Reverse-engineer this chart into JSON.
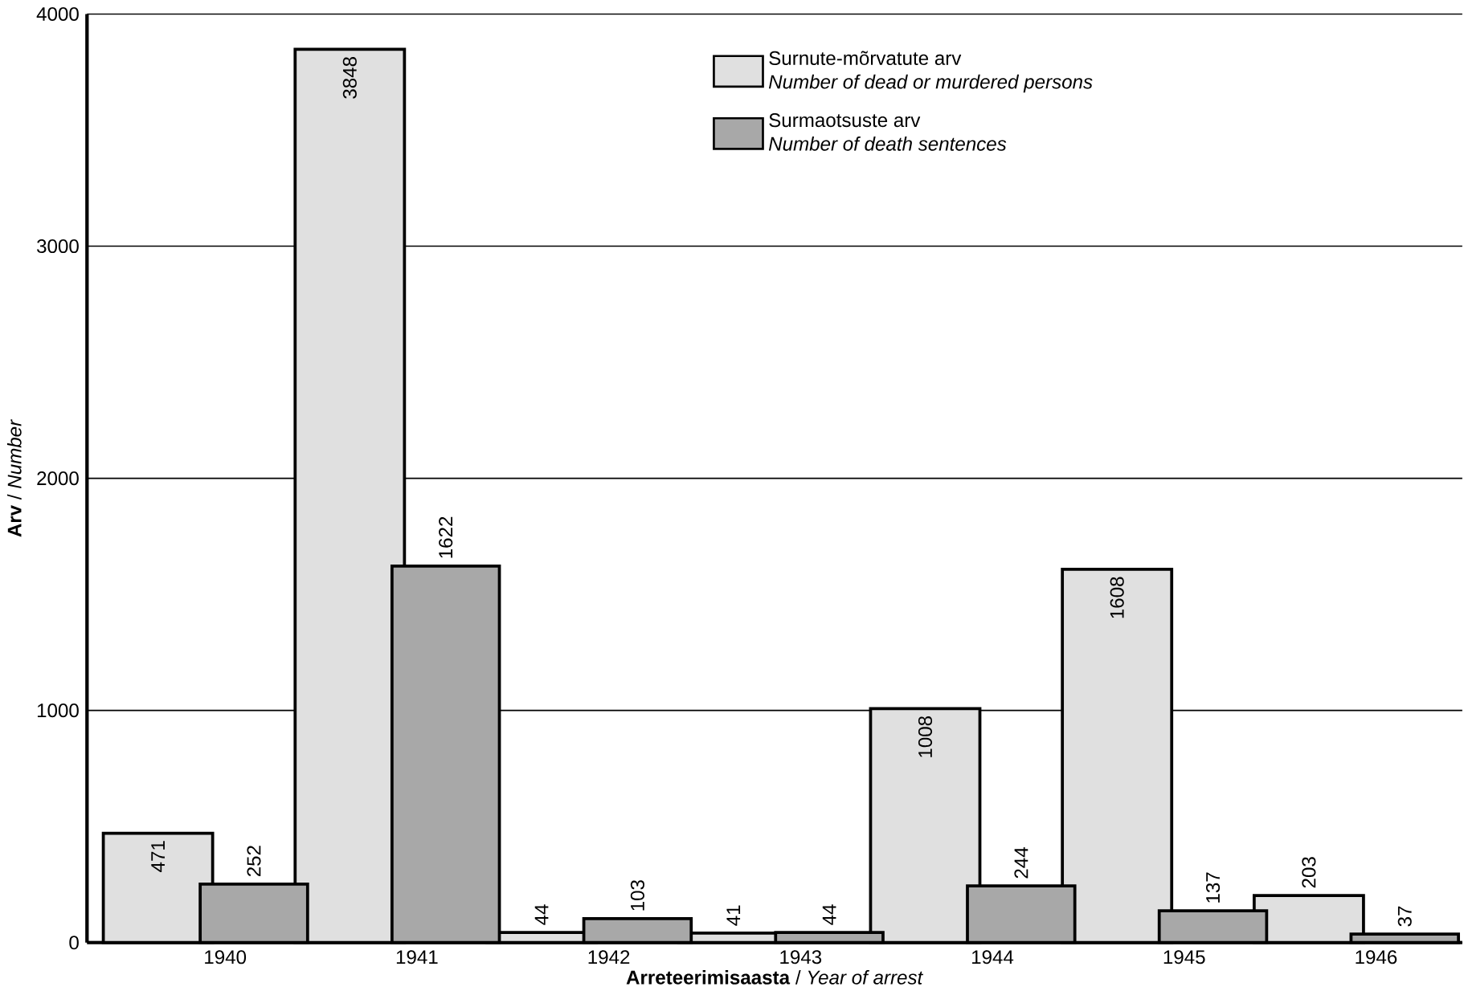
{
  "chart_data": {
    "type": "bar",
    "categories": [
      "1940",
      "1941",
      "1942",
      "1943",
      "1944",
      "1945",
      "1946"
    ],
    "series": [
      {
        "name": "Surnute-mõrvatute arv",
        "color": "#e0e0e0",
        "values": [
          471,
          3848,
          44,
          41,
          1008,
          1608,
          203
        ]
      },
      {
        "name": "Surmaotsuste arv",
        "color": "#a8a8a8",
        "values": [
          252,
          1622,
          103,
          44,
          244,
          137,
          37
        ]
      }
    ],
    "annotations": [
      "Number of dead or murdered persons",
      "Number of death sentences"
    ],
    "xlabel": "**Arreteerimisaasta** / *Year of arrest*",
    "ylabel": "**Arv** / *Number*",
    "ylim": [
      0,
      4000
    ],
    "yticks": [
      0,
      1000,
      2000,
      3000,
      4000
    ],
    "grid": "y",
    "legend": "top right",
    "data_labels": true
  }
}
